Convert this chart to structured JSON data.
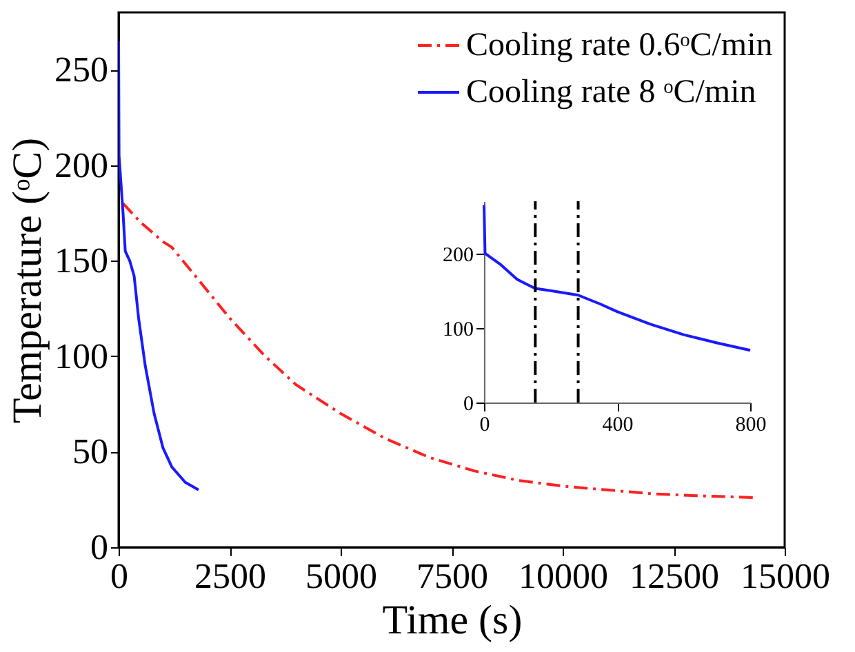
{
  "chart_data": [
    {
      "type": "line",
      "xlabel": "Time (s)",
      "ylabel": "Temperature (ᵒC)",
      "xlim": [
        0,
        15000
      ],
      "ylim": [
        0,
        280
      ],
      "xticks": [
        0,
        2500,
        5000,
        7500,
        10000,
        12500,
        15000
      ],
      "yticks": [
        0,
        50,
        100,
        150,
        200,
        250
      ],
      "grid": false,
      "legend": "top right",
      "series": [
        {
          "name": "Cooling rate 0.6ᵒC/min",
          "color": "#ff2020",
          "line_style": "dashdot",
          "x": [
            100,
            500,
            1000,
            1200,
            1800,
            2500,
            3300,
            4000,
            5000,
            6000,
            7000,
            8000,
            9000,
            10000,
            11000,
            12000,
            13000,
            14300
          ],
          "values": [
            180,
            170,
            160,
            157,
            140,
            120,
            100,
            85,
            70,
            57,
            47,
            40,
            35,
            32,
            30,
            28,
            27,
            26
          ]
        },
        {
          "name": "Cooling rate 8 ᵒC/min",
          "color": "#1a1aff",
          "line_style": "solid",
          "x": [
            0,
            10,
            100,
            150,
            250,
            350,
            450,
            600,
            800,
            1000,
            1200,
            1500,
            1800
          ],
          "values": [
            265,
            205,
            175,
            155,
            150,
            142,
            120,
            95,
            70,
            52,
            42,
            34,
            30
          ]
        }
      ]
    },
    {
      "type": "line",
      "xlim": [
        0,
        800
      ],
      "ylim": [
        0,
        270
      ],
      "xticks": [
        0,
        400,
        800
      ],
      "yticks": [
        0,
        100,
        200
      ],
      "grid": false,
      "legend": false,
      "series": [
        {
          "color": "#1a1aff",
          "line_style": "solid",
          "x": [
            0,
            3,
            50,
            100,
            154,
            200,
            283,
            350,
            400,
            500,
            600,
            700,
            800
          ],
          "values": [
            265,
            200,
            185,
            165,
            153,
            150,
            144,
            132,
            122,
            105,
            91,
            80,
            70
          ]
        }
      ],
      "ref_lines": [
        {
          "axis": "x",
          "value": 154,
          "color": "#000000",
          "line_style": "dashdot"
        },
        {
          "axis": "x",
          "value": 283,
          "color": "#000000",
          "line_style": "dashdot"
        }
      ]
    }
  ]
}
